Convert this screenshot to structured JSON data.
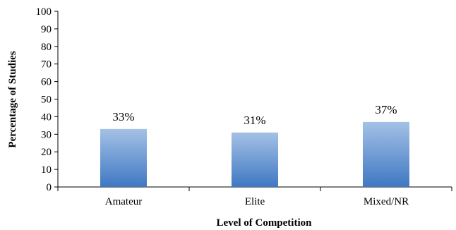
{
  "chart_data": {
    "type": "bar",
    "title": "",
    "xlabel": "Level of Competition",
    "ylabel": "Percentage of Studies",
    "categories": [
      "Amateur",
      "Elite",
      "Mixed/NR"
    ],
    "values": [
      33,
      31,
      37
    ],
    "data_labels": [
      "33%",
      "31%",
      "37%"
    ],
    "ylim": [
      0,
      100
    ],
    "yticks": [
      0,
      10,
      20,
      30,
      40,
      50,
      60,
      70,
      80,
      90,
      100
    ],
    "grid": false,
    "legend": "none",
    "colors": {
      "bar_top": "#a4c1e6",
      "bar_bottom": "#3f78c2",
      "axis": "#000000"
    }
  }
}
